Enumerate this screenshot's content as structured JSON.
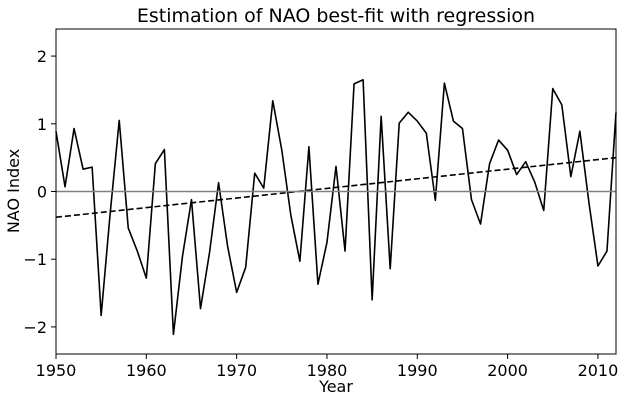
{
  "chart_data": {
    "type": "line",
    "title": "Estimation of NAO best-fit with regression",
    "xlabel": "Year",
    "ylabel": "NAO Index",
    "xlim": [
      1950,
      2012
    ],
    "ylim": [
      -2.4,
      2.4
    ],
    "xticks": [
      1950,
      1960,
      1970,
      1980,
      1990,
      2000,
      2010
    ],
    "yticks": [
      -2,
      -1,
      0,
      1,
      2
    ],
    "grid": false,
    "series": [
      {
        "kind": "data",
        "color": "#000000",
        "style": "solid",
        "x": [
          1950,
          1951,
          1952,
          1953,
          1954,
          1955,
          1956,
          1957,
          1958,
          1959,
          1960,
          1961,
          1962,
          1963,
          1964,
          1965,
          1966,
          1967,
          1968,
          1969,
          1970,
          1971,
          1972,
          1973,
          1974,
          1975,
          1976,
          1977,
          1978,
          1979,
          1980,
          1981,
          1982,
          1983,
          1984,
          1985,
          1986,
          1987,
          1988,
          1989,
          1990,
          1991,
          1992,
          1993,
          1994,
          1995,
          1996,
          1997,
          1998,
          1999,
          2000,
          2001,
          2002,
          2003,
          2004,
          2005,
          2006,
          2007,
          2008,
          2009,
          2010,
          2011,
          2012
        ],
        "y": [
          0.89,
          0.07,
          0.93,
          0.33,
          0.36,
          -1.83,
          -0.32,
          1.05,
          -0.54,
          -0.88,
          -1.28,
          0.41,
          0.62,
          -2.11,
          -0.96,
          -0.12,
          -1.73,
          -0.9,
          0.13,
          -0.81,
          -1.49,
          -1.12,
          0.27,
          0.05,
          1.34,
          0.61,
          -0.35,
          -1.03,
          0.66,
          -1.37,
          -0.75,
          0.37,
          -0.88,
          1.59,
          1.65,
          -1.6,
          1.11,
          -1.14,
          1.01,
          1.17,
          1.04,
          0.86,
          -0.13,
          1.6,
          1.04,
          0.93,
          -0.12,
          -0.48,
          0.41,
          0.76,
          0.61,
          0.25,
          0.44,
          0.14,
          -0.28,
          1.52,
          1.28,
          0.22,
          0.89,
          -0.16,
          -1.1,
          -0.88,
          1.17
        ]
      },
      {
        "kind": "regression",
        "color": "#000000",
        "style": "dashed",
        "x": [
          1950,
          2012
        ],
        "y": [
          -0.38,
          0.5
        ]
      },
      {
        "kind": "zero-line",
        "color": "#808080",
        "style": "solid",
        "x": [
          1950,
          2012
        ],
        "y": [
          0,
          0
        ]
      }
    ]
  }
}
